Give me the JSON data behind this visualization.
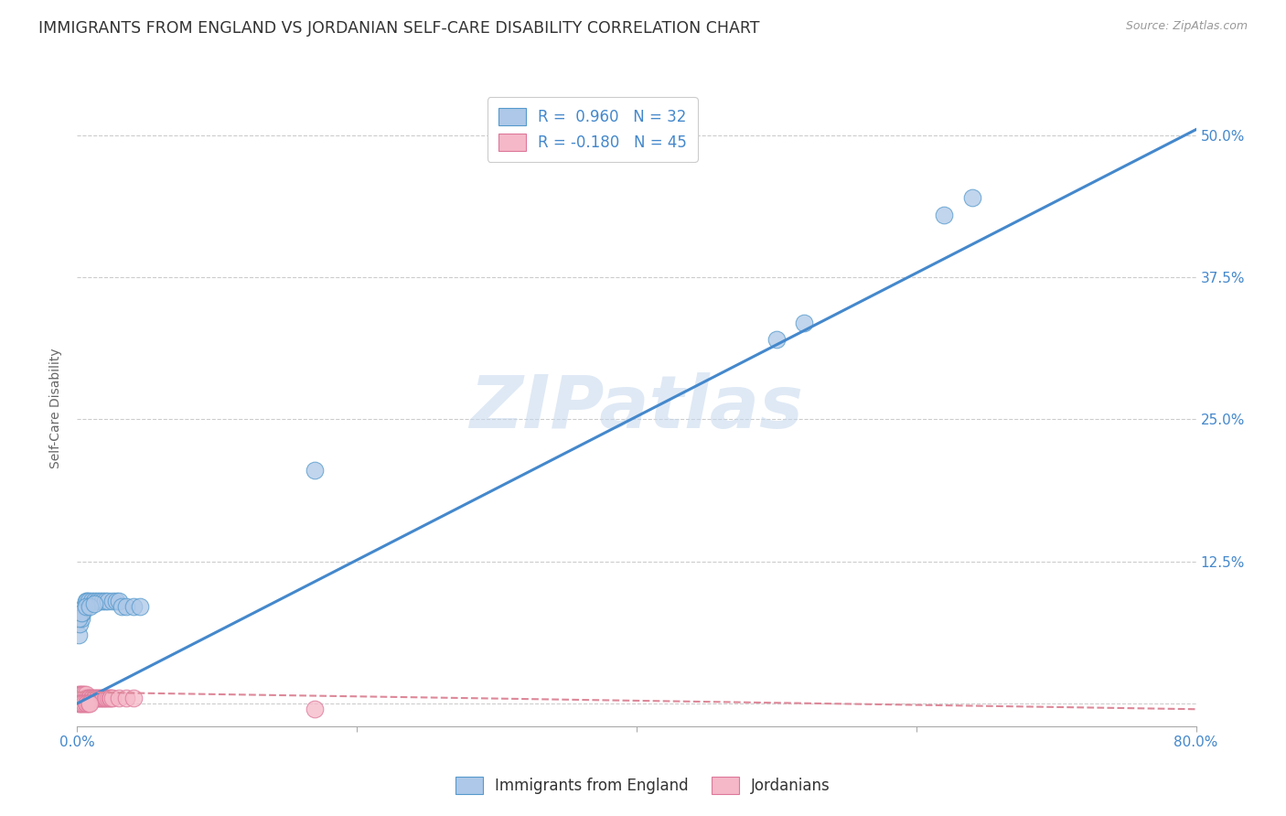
{
  "title": "IMMIGRANTS FROM ENGLAND VS JORDANIAN SELF-CARE DISABILITY CORRELATION CHART",
  "source": "Source: ZipAtlas.com",
  "ylabel": "Self-Care Disability",
  "xlim": [
    0.0,
    0.8
  ],
  "ylim": [
    -0.02,
    0.54
  ],
  "xticks": [
    0.0,
    0.2,
    0.4,
    0.6,
    0.8
  ],
  "yticks": [
    0.0,
    0.125,
    0.25,
    0.375,
    0.5
  ],
  "ytick_labels": [
    "",
    "12.5%",
    "25.0%",
    "37.5%",
    "50.0%"
  ],
  "xtick_labels": [
    "0.0%",
    "",
    "",
    "",
    "80.0%"
  ],
  "england_R": 0.96,
  "england_N": 32,
  "jordan_R": -0.18,
  "jordan_N": 45,
  "england_color": "#adc8e8",
  "england_edge_color": "#5599cc",
  "england_line_color": "#4488cc",
  "jordan_color": "#f5b8c8",
  "jordan_edge_color": "#dd7799",
  "jordan_line_color": "#dd8899",
  "background_color": "#ffffff",
  "grid_color": "#cccccc",
  "watermark": "ZIPatlas",
  "title_fontsize": 12.5,
  "axis_label_fontsize": 10,
  "tick_fontsize": 11,
  "england_scatter_x": [
    0.001,
    0.002,
    0.003,
    0.004,
    0.005,
    0.006,
    0.007,
    0.008,
    0.01,
    0.012,
    0.014,
    0.016,
    0.018,
    0.02,
    0.022,
    0.025,
    0.028,
    0.03,
    0.032,
    0.035,
    0.04,
    0.045,
    0.17,
    0.5,
    0.52,
    0.62,
    0.64,
    0.001,
    0.003,
    0.006,
    0.009,
    0.012
  ],
  "england_scatter_y": [
    0.06,
    0.07,
    0.075,
    0.08,
    0.085,
    0.09,
    0.09,
    0.09,
    0.09,
    0.09,
    0.09,
    0.09,
    0.09,
    0.09,
    0.09,
    0.09,
    0.09,
    0.09,
    0.085,
    0.085,
    0.085,
    0.085,
    0.205,
    0.32,
    0.335,
    0.43,
    0.445,
    0.075,
    0.08,
    0.085,
    0.085,
    0.088
  ],
  "jordan_scatter_x": [
    0.0,
    0.001,
    0.001,
    0.002,
    0.002,
    0.003,
    0.003,
    0.004,
    0.004,
    0.005,
    0.005,
    0.006,
    0.006,
    0.007,
    0.008,
    0.009,
    0.01,
    0.011,
    0.012,
    0.013,
    0.014,
    0.015,
    0.016,
    0.017,
    0.018,
    0.019,
    0.02,
    0.021,
    0.022,
    0.023,
    0.024,
    0.025,
    0.03,
    0.035,
    0.04,
    0.17,
    0.001,
    0.002,
    0.003,
    0.004,
    0.005,
    0.006,
    0.007,
    0.008,
    0.009
  ],
  "jordan_scatter_y": [
    0.005,
    0.005,
    0.008,
    0.005,
    0.008,
    0.005,
    0.008,
    0.005,
    0.008,
    0.005,
    0.008,
    0.005,
    0.008,
    0.005,
    0.005,
    0.005,
    0.005,
    0.005,
    0.005,
    0.005,
    0.005,
    0.005,
    0.005,
    0.005,
    0.005,
    0.005,
    0.005,
    0.005,
    0.005,
    0.005,
    0.005,
    0.005,
    0.005,
    0.005,
    0.005,
    -0.005,
    0.0,
    0.0,
    0.0,
    0.0,
    0.0,
    0.0,
    0.0,
    0.0,
    0.0
  ],
  "england_line_x": [
    0.0,
    0.8
  ],
  "england_line_y": [
    0.0,
    0.505
  ],
  "jordan_line_x": [
    0.0,
    0.8
  ],
  "jordan_line_y": [
    0.01,
    -0.005
  ]
}
